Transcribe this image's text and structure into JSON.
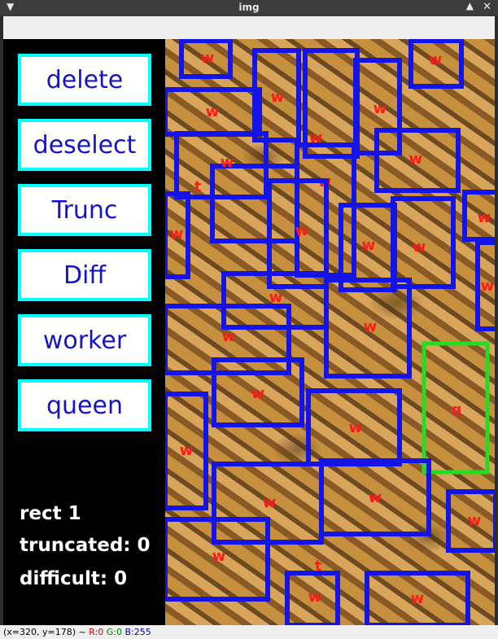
{
  "window": {
    "title": "img",
    "menu_icon": "chevron-down-icon",
    "minimize_icon": "chevron-up-icon",
    "close_icon": "close-icon"
  },
  "sidebar": {
    "buttons": [
      {
        "label": "delete"
      },
      {
        "label": "deselect"
      },
      {
        "label": "Trunc"
      },
      {
        "label": "Diff"
      },
      {
        "label": "worker"
      },
      {
        "label": "queen"
      }
    ],
    "stats": {
      "rect": "rect  1",
      "truncated": "truncated:  0",
      "difficult": "difficult:  0"
    }
  },
  "annotations": {
    "colors": {
      "worker_box": "#1414e6",
      "selected_box": "#22dd22",
      "label": "#ff1a1a"
    },
    "boxes": [
      {
        "label": "w"
      },
      {
        "label": "w"
      },
      {
        "label": "w"
      },
      {
        "label": "w"
      },
      {
        "label": "w"
      },
      {
        "label": "w"
      },
      {
        "label": "t"
      },
      {
        "label": "w"
      },
      {
        "label": "w"
      },
      {
        "label": "w"
      },
      {
        "label": "w"
      },
      {
        "label": "w"
      },
      {
        "label": "w"
      },
      {
        "label": "w"
      },
      {
        "label": "w"
      },
      {
        "label": "w"
      },
      {
        "label": "w"
      },
      {
        "label": "w"
      },
      {
        "label": "w"
      },
      {
        "label": "w"
      },
      {
        "label": "w"
      },
      {
        "label": "w"
      },
      {
        "label": "q"
      },
      {
        "label": "w"
      },
      {
        "label": "w"
      },
      {
        "label": "w"
      },
      {
        "label": "w"
      },
      {
        "label": "w"
      },
      {
        "label": "w"
      },
      {
        "label": "t"
      },
      {
        "label": "w"
      },
      {
        "label": "w"
      }
    ]
  },
  "status": {
    "coords": "(x=320, y=178) ~ ",
    "r": "R:0",
    "g": "G:0",
    "b": "B:255"
  }
}
